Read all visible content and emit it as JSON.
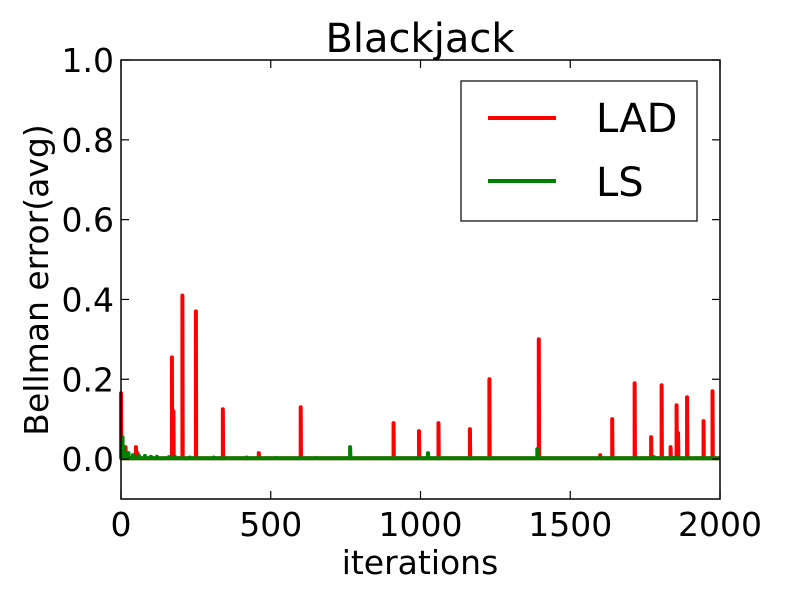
{
  "chart_data": {
    "type": "line",
    "title": "Blackjack",
    "xlabel": "iterations",
    "ylabel": "Bellman error(avg)",
    "xlim": [
      0,
      2000
    ],
    "ylim": [
      -0.1,
      1.0
    ],
    "x_ticks": [
      0,
      500,
      1000,
      1500,
      2000
    ],
    "x_tick_labels": [
      "0",
      "500",
      "1000",
      "1500",
      "2000"
    ],
    "y_ticks": [
      0.0,
      0.2,
      0.4,
      0.6,
      0.8,
      1.0
    ],
    "y_tick_labels": [
      "0.0",
      "0.2",
      "0.4",
      "0.6",
      "0.8",
      "1.0"
    ],
    "grid": false,
    "legend_position": "top-right",
    "baseline": 0.002,
    "series": [
      {
        "name": "LAD",
        "color": "#ff0000",
        "spikes": [
          [
            0,
            0.165
          ],
          [
            3,
            0.04
          ],
          [
            8,
            0.02
          ],
          [
            15,
            0.03
          ],
          [
            50,
            0.03
          ],
          [
            55,
            0.015
          ],
          [
            170,
            0.255
          ],
          [
            175,
            0.12
          ],
          [
            205,
            0.41
          ],
          [
            250,
            0.37
          ],
          [
            340,
            0.125
          ],
          [
            460,
            0.015
          ],
          [
            600,
            0.13
          ],
          [
            910,
            0.09
          ],
          [
            995,
            0.07
          ],
          [
            1060,
            0.09
          ],
          [
            1165,
            0.075
          ],
          [
            1230,
            0.2
          ],
          [
            1395,
            0.3
          ],
          [
            1600,
            0.01
          ],
          [
            1640,
            0.1
          ],
          [
            1715,
            0.19
          ],
          [
            1770,
            0.055
          ],
          [
            1805,
            0.185
          ],
          [
            1835,
            0.03
          ],
          [
            1855,
            0.135
          ],
          [
            1860,
            0.065
          ],
          [
            1890,
            0.155
          ],
          [
            1945,
            0.095
          ],
          [
            1975,
            0.17
          ]
        ]
      },
      {
        "name": "LS",
        "color": "#008000",
        "spikes": [
          [
            2,
            0.04
          ],
          [
            5,
            0.055
          ],
          [
            10,
            0.03
          ],
          [
            15,
            0.015
          ],
          [
            25,
            0.015
          ],
          [
            40,
            0.01
          ],
          [
            60,
            0.008
          ],
          [
            80,
            0.008
          ],
          [
            100,
            0.006
          ],
          [
            120,
            0.006
          ],
          [
            160,
            0.005
          ],
          [
            180,
            0.006
          ],
          [
            230,
            0.004
          ],
          [
            310,
            0.004
          ],
          [
            420,
            0.004
          ],
          [
            520,
            0.003
          ],
          [
            650,
            0.003
          ],
          [
            765,
            0.03
          ],
          [
            1025,
            0.015
          ],
          [
            1390,
            0.025
          ],
          [
            1780,
            0.005
          ],
          [
            1850,
            0.004
          ]
        ]
      }
    ]
  }
}
